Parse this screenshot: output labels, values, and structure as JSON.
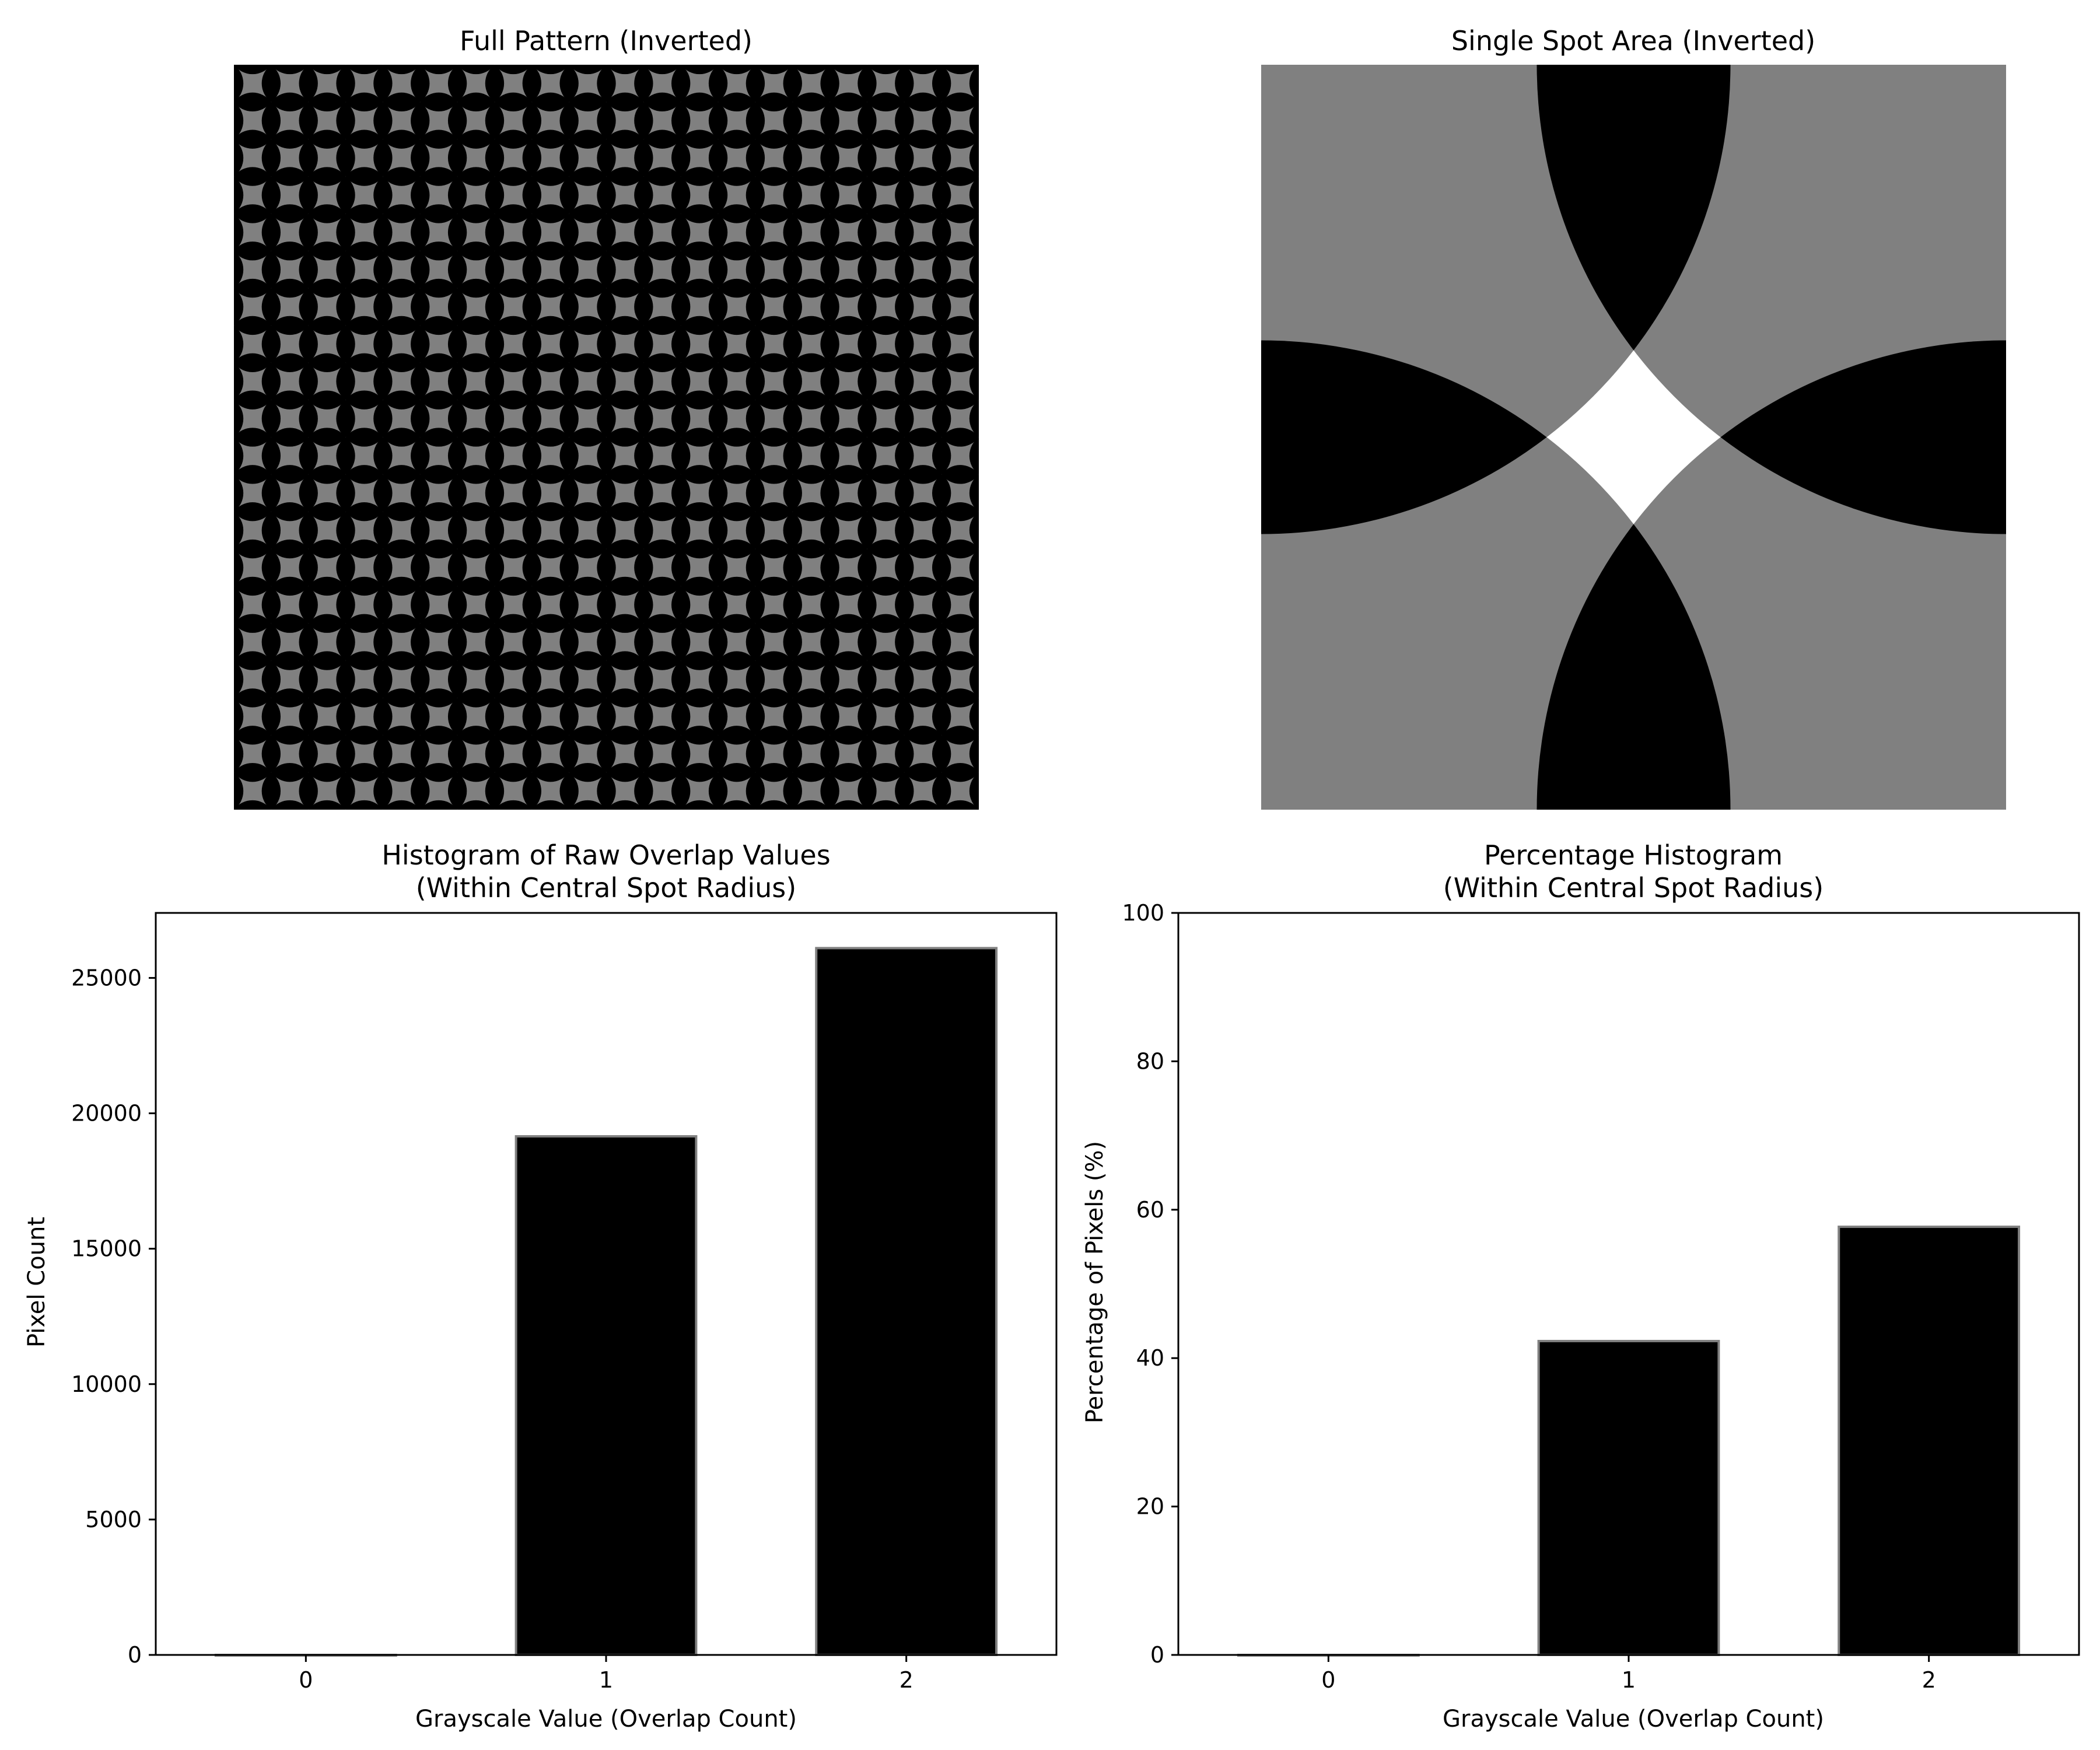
{
  "panels": {
    "full_pattern": {
      "title": "Full Pattern (Inverted)",
      "cmap": "gray",
      "colors": {
        "background": "#808080",
        "overlap": "#000000"
      }
    },
    "single_spot": {
      "title": "Single Spot Area (Inverted)",
      "cmap": "gray",
      "colors": {
        "background": "#808080",
        "overlap": "#000000",
        "gap": "#ffffff"
      }
    }
  },
  "chart_data": [
    {
      "type": "bar",
      "title": "Histogram of Raw Overlap Values\n(Within Central Spot Radius)",
      "title_lines": [
        "Histogram of Raw Overlap Values",
        "(Within Central Spot Radius)"
      ],
      "xlabel": "Grayscale Value (Overlap Count)",
      "ylabel": "Pixel Count",
      "categories": [
        "0",
        "1",
        "2"
      ],
      "values": [
        0,
        19150,
        26100
      ],
      "ylim": [
        0,
        27400
      ],
      "yticks": [
        0,
        5000,
        10000,
        15000,
        20000,
        25000
      ],
      "xlim": [
        -0.5,
        2.5
      ],
      "bar_color": "#000000",
      "edge_color": "#808080",
      "grid": false
    },
    {
      "type": "bar",
      "title": "Percentage Histogram\n(Within Central Spot Radius)",
      "title_lines": [
        "Percentage Histogram",
        "(Within Central Spot Radius)"
      ],
      "xlabel": "Grayscale Value (Overlap Count)",
      "ylabel": "Percentage of Pixels (%)",
      "categories": [
        "0",
        "1",
        "2"
      ],
      "values": [
        0,
        42.3,
        57.7
      ],
      "ylim": [
        0,
        100
      ],
      "yticks": [
        0,
        20,
        40,
        60,
        80,
        100
      ],
      "xlim": [
        -0.5,
        2.5
      ],
      "bar_color": "#000000",
      "edge_color": "#808080",
      "grid": false
    }
  ]
}
